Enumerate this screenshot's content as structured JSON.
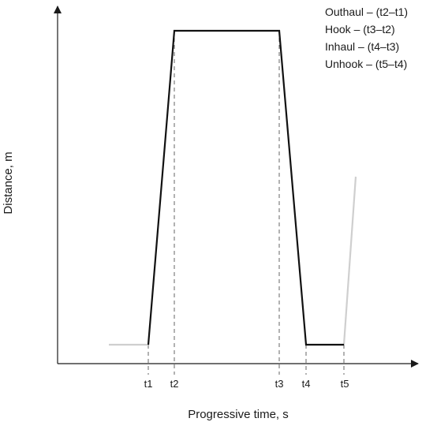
{
  "axes": {
    "x_label": "Progressive time, s",
    "y_label": "Distance, m"
  },
  "time_marks": [
    "t1",
    "t2",
    "t3",
    "t4",
    "t5"
  ],
  "legend": [
    "Outhaul – (t2–t1)",
    "Hook – (t3–t2)",
    "Inhaul – (t4–t3)",
    "Unhook – (t5–t4)"
  ],
  "colors": {
    "axis": "#1a1a1a",
    "cycle_line": "#111111",
    "faded_line": "#cfcfcf",
    "guide_dash": "#555555"
  }
}
